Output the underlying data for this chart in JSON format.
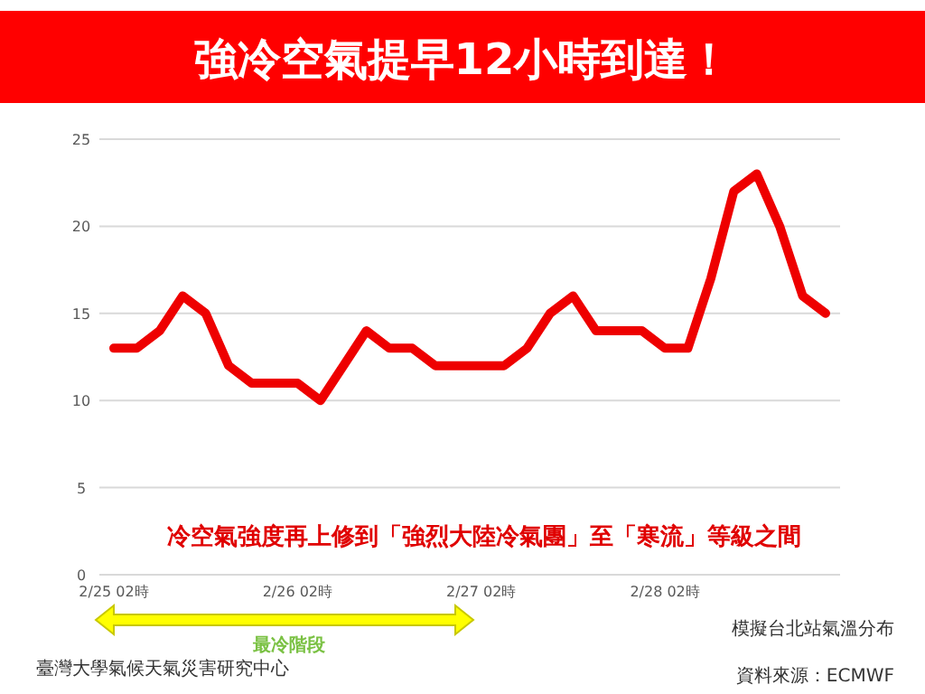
{
  "chart_data": {
    "type": "line",
    "title": "強冷空氣提早12小時到達！",
    "categories": [
      "2/25 02時",
      null,
      null,
      null,
      null,
      null,
      null,
      null,
      "2/26 02時",
      null,
      null,
      null,
      null,
      null,
      null,
      null,
      "2/27 02時",
      null,
      null,
      null,
      null,
      null,
      null,
      null,
      "2/28 02時",
      null,
      null,
      null,
      null,
      null,
      null,
      null
    ],
    "series": [
      {
        "color": "#ee0000",
        "values": [
          13,
          13,
          14,
          16,
          15,
          12,
          11,
          11,
          11,
          10,
          12,
          14,
          13,
          13,
          12,
          12,
          12,
          12,
          13,
          15,
          16,
          14,
          14,
          14,
          13,
          13,
          17,
          22,
          23,
          20,
          16,
          15
        ]
      }
    ],
    "ylim": [
      0,
      25
    ],
    "yticks": [
      0,
      5,
      10,
      15,
      20,
      25
    ],
    "grid": "y",
    "line_style": "solid",
    "marker": "none",
    "annotations": [
      "冷空氣強度再上修到「強烈大陸冷氣團」至「寒流」等級之間",
      "最冷階段",
      "模擬台北站氣溫分布",
      "資料來源：ECMWF",
      "臺灣大學氣候天氣災害研究中心"
    ]
  }
}
